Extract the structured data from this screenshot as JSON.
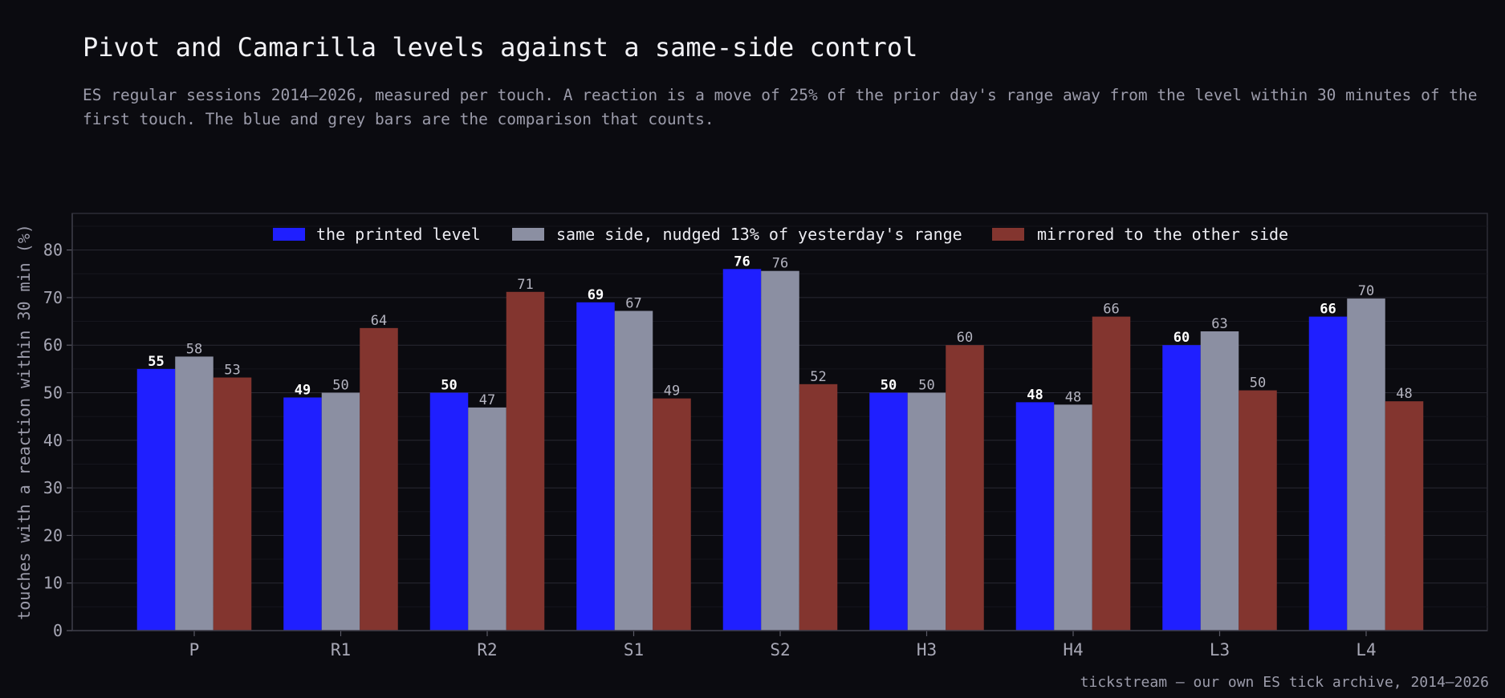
{
  "header": {
    "title": "Pivot and Camarilla levels against a same-side control",
    "subtitle": "ES regular sessions 2014–2026, measured per touch. A reaction is a move of 25% of the prior day's range away from the level within 30 minutes of the first touch. The blue and grey bars are the comparison that counts."
  },
  "footer": {
    "source": "tickstream — our own ES tick archive, 2014–2026"
  },
  "colors": {
    "background": "#0b0b10",
    "printed": "#1f1fff",
    "control": "#8b8fa2",
    "mirrored": "#83352f",
    "grid": "#2a2a33"
  },
  "chart_data": {
    "type": "bar",
    "title": "Pivot and Camarilla levels against a same-side control",
    "xlabel": "",
    "ylabel": "touches with a reaction within 30 min (%)",
    "ylim": [
      0,
      88
    ],
    "yticks": [
      0,
      10,
      20,
      30,
      40,
      50,
      60,
      70,
      80
    ],
    "grid": true,
    "legend_position": "top-center",
    "categories": [
      "P",
      "R1",
      "R2",
      "S1",
      "S2",
      "H3",
      "H4",
      "L3",
      "L4"
    ],
    "series": [
      {
        "name": "the printed level",
        "values": [
          55,
          49,
          50,
          69,
          76,
          50,
          48,
          60,
          66
        ],
        "labels": [
          "55",
          "49",
          "50",
          "69",
          "76",
          "50",
          "48",
          "60",
          "66"
        ]
      },
      {
        "name": "same side, nudged 13% of yesterday's range",
        "values": [
          57.6,
          50,
          46.9,
          67.2,
          75.6,
          50,
          47.5,
          62.9,
          69.8
        ],
        "labels": [
          "58",
          "50",
          "47",
          "67",
          "76",
          "50",
          "48",
          "63",
          "70"
        ]
      },
      {
        "name": "mirrored to the other side",
        "values": [
          53.2,
          63.6,
          71.2,
          48.8,
          51.8,
          60,
          66,
          50.5,
          48.2
        ],
        "labels": [
          "53",
          "64",
          "71",
          "49",
          "52",
          "60",
          "66",
          "50",
          "48"
        ]
      }
    ]
  }
}
